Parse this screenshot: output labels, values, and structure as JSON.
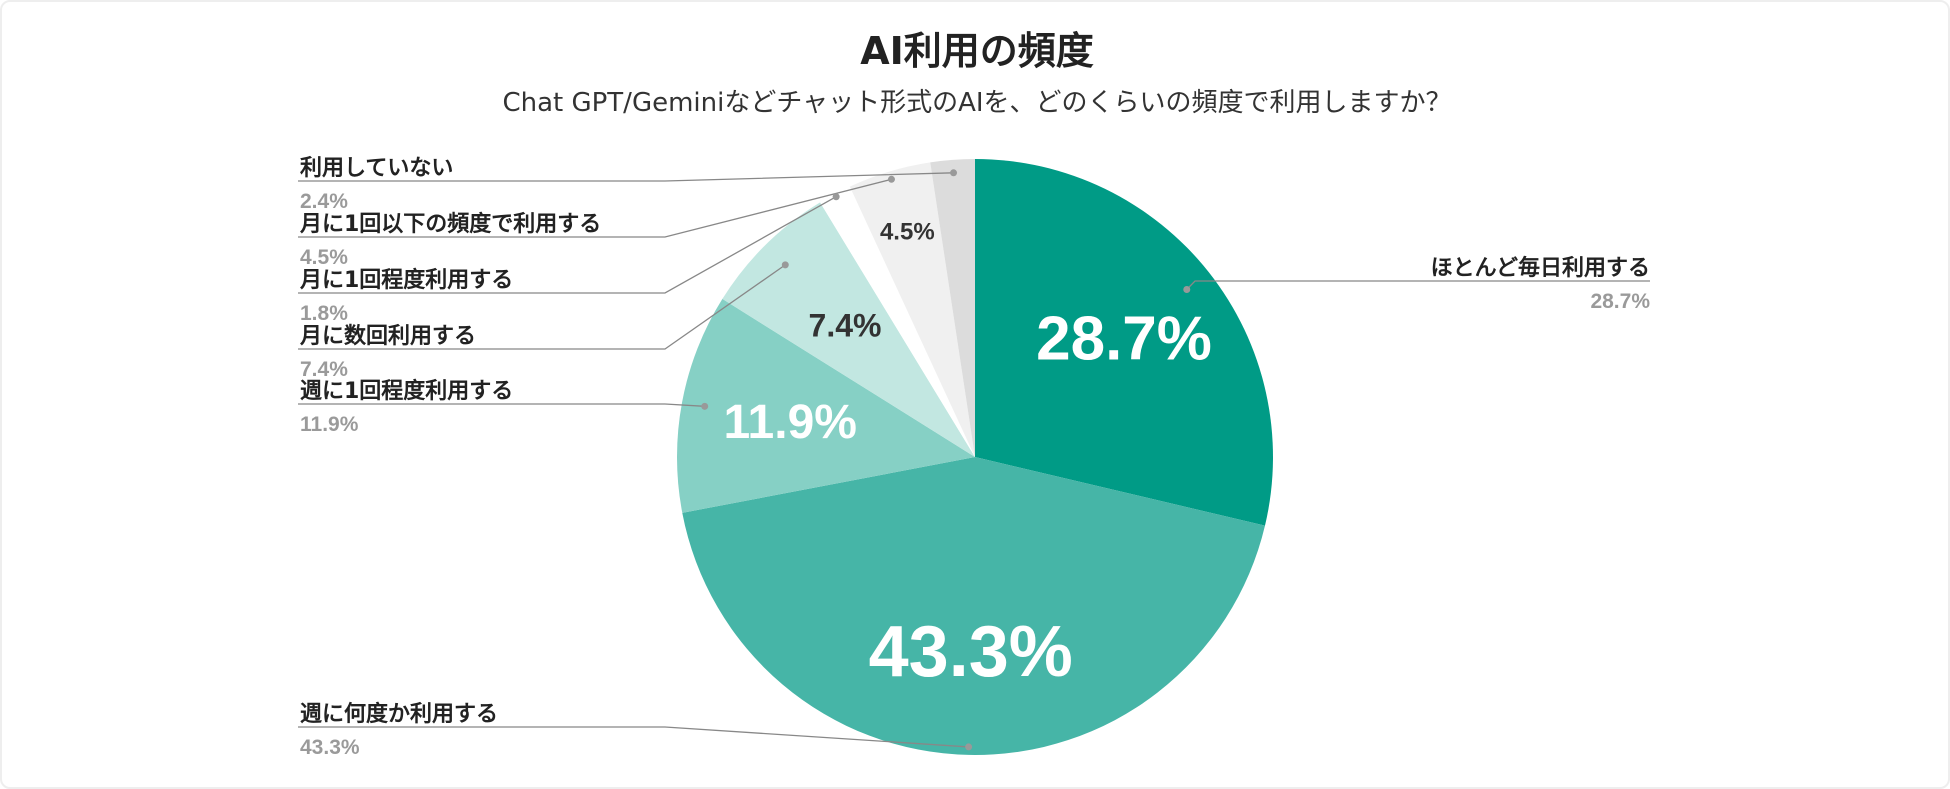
{
  "chart_data": {
    "type": "pie",
    "title": "AI利用の頻度",
    "subtitle": "Chat GPT/Geminiなどチャット形式のAIを、どのくらいの頻度で利用しますか？",
    "slices": [
      {
        "label": "ほとんど毎日利用する",
        "value": 28.7,
        "display": "28.7%",
        "color": "#009b86"
      },
      {
        "label": "週に何度か利用する",
        "value": 43.3,
        "display": "43.3%",
        "color": "#46b5a7"
      },
      {
        "label": "週に1回程度利用する",
        "value": 11.9,
        "display": "11.9%",
        "color": "#86d0c5"
      },
      {
        "label": "月に数回利用する",
        "value": 7.4,
        "display": "7.4%",
        "color": "#c2e7e1"
      },
      {
        "label": "月に1回程度利用する",
        "value": 1.8,
        "display": "1.8%",
        "color": "#ffffff"
      },
      {
        "label": "月に1回以下の頻度で利用する",
        "value": 4.5,
        "display": "4.5%",
        "color": "#f0f0f0"
      },
      {
        "label": "利用していない",
        "value": 2.4,
        "display": "2.4%",
        "color": "#dcdcdc"
      }
    ]
  }
}
